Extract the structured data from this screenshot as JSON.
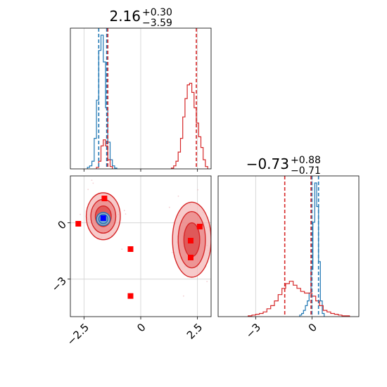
{
  "chart_data": [
    {
      "type": "histogram",
      "panel": "marginal-x",
      "title": {
        "value": "2.16",
        "plus": "+0.30",
        "minus": "−3.59"
      },
      "xlim": [
        -3.1,
        3.1
      ],
      "xticks": [
        -2.5,
        0.0,
        2.5
      ],
      "grid": true,
      "series": [
        {
          "color": "#1f77b4",
          "bin_centers": [
            -2.3,
            -2.2,
            -2.1,
            -2.0,
            -1.9,
            -1.8,
            -1.7,
            -1.6,
            -1.5,
            -1.4,
            -1.3,
            -1.2,
            -1.1
          ],
          "counts": [
            2,
            4,
            10,
            40,
            90,
            155,
            175,
            140,
            80,
            35,
            12,
            4,
            1
          ],
          "quantile_lines": [
            -1.85,
            -1.5
          ]
        },
        {
          "color": "#d62728",
          "bin_centers": [
            -1.9,
            -1.8,
            -1.7,
            -1.6,
            -1.5,
            -1.4,
            -1.3,
            1.4,
            1.5,
            1.6,
            1.7,
            1.8,
            1.9,
            2.0,
            2.1,
            2.2,
            2.3,
            2.4,
            2.5,
            2.6,
            2.7,
            2.8,
            2.9
          ],
          "counts": [
            2,
            10,
            30,
            38,
            30,
            12,
            3,
            1,
            4,
            10,
            22,
            40,
            68,
            92,
            110,
            112,
            100,
            80,
            60,
            42,
            28,
            12,
            3
          ],
          "quantile_lines": [
            -1.45,
            2.45
          ]
        }
      ]
    },
    {
      "type": "scatter",
      "panel": "joint",
      "xlim": [
        -3.1,
        3.1
      ],
      "ylim": [
        -5.0,
        2.5
      ],
      "xticks": [
        -2.5,
        0.0,
        2.5
      ],
      "yticks": [
        -3,
        0
      ],
      "grid": true,
      "contours": [
        {
          "color": "#d62728",
          "center": [
            -1.65,
            0.35
          ],
          "levels": [
            [
              0.35,
              0.55
            ],
            [
              0.55,
              0.9
            ],
            [
              0.75,
              1.25
            ]
          ]
        },
        {
          "color": "#d62728",
          "center": [
            2.25,
            -0.9
          ],
          "levels": [
            [
              0.35,
              0.9
            ],
            [
              0.6,
              1.5
            ],
            [
              0.85,
              2.0
            ]
          ]
        },
        {
          "color": "#1f77b4",
          "center": [
            -1.65,
            0.2
          ],
          "levels": [
            [
              0.2,
              0.25
            ],
            [
              0.3,
              0.35
            ]
          ]
        }
      ],
      "markers_red": [
        {
          "x": -2.75,
          "y": -0.05
        },
        {
          "x": -1.6,
          "y": 1.3
        },
        {
          "x": -0.45,
          "y": -1.4
        },
        {
          "x": -0.45,
          "y": -3.9
        },
        {
          "x": 2.2,
          "y": -0.95
        },
        {
          "x": 2.2,
          "y": -1.85
        },
        {
          "x": 2.6,
          "y": -0.2
        }
      ],
      "markers_blue": [
        {
          "x": -1.65,
          "y": 0.25
        }
      ]
    },
    {
      "type": "histogram",
      "panel": "marginal-y",
      "title": {
        "value": "−0.73",
        "plus": "+0.88",
        "minus": "−0.71"
      },
      "xlim": [
        -5.0,
        2.5
      ],
      "xticks": [
        -3,
        0
      ],
      "grid": true,
      "series": [
        {
          "color": "#1f77b4",
          "bin_centers": [
            -0.6,
            -0.5,
            -0.4,
            -0.3,
            -0.2,
            -0.1,
            0.0,
            0.1,
            0.2,
            0.3,
            0.4,
            0.5,
            0.6
          ],
          "counts": [
            2,
            4,
            8,
            14,
            20,
            30,
            60,
            120,
            170,
            140,
            70,
            20,
            4
          ],
          "quantile_lines": [
            0.0,
            0.35
          ]
        },
        {
          "color": "#d62728",
          "bin_centers": [
            -3.3,
            -3.1,
            -2.9,
            -2.7,
            -2.5,
            -2.3,
            -2.1,
            -1.9,
            -1.7,
            -1.5,
            -1.3,
            -1.1,
            -0.9,
            -0.7,
            -0.5,
            -0.3,
            -0.1,
            0.1,
            0.3,
            0.5,
            0.7,
            0.9,
            1.1,
            1.3,
            1.5,
            1.7,
            1.9
          ],
          "counts": [
            1,
            2,
            3,
            4,
            6,
            10,
            14,
            20,
            28,
            36,
            42,
            45,
            40,
            36,
            32,
            30,
            30,
            26,
            20,
            14,
            8,
            6,
            4,
            3,
            2,
            1,
            1
          ],
          "quantile_lines": [
            -1.45,
            -0.05
          ]
        }
      ]
    }
  ]
}
